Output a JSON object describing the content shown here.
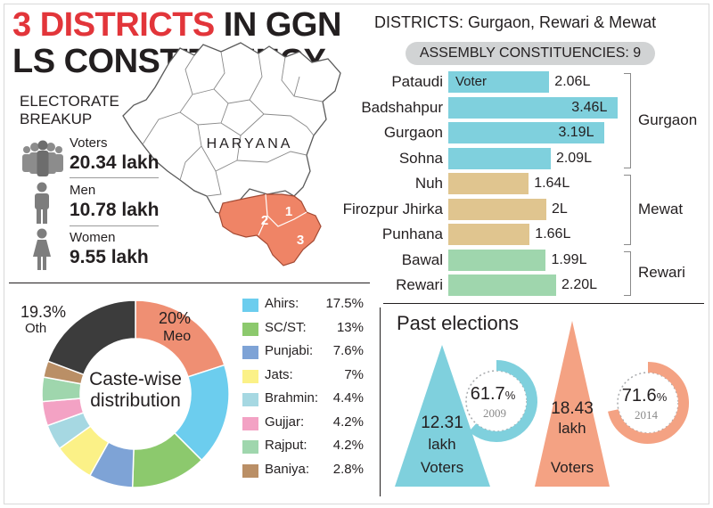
{
  "headline": {
    "part1": "3 DISTRICTS",
    "part2": " IN GGN",
    "line2": "LS CONSTITUENCY"
  },
  "electorate": {
    "title_line1": "ELECTORATE",
    "title_line2": "BREAKUP",
    "items": [
      {
        "label": "Voters",
        "value": "20.34 lakh",
        "icon": "people-group-icon"
      },
      {
        "label": "Men",
        "value": "10.78 lakh",
        "icon": "man-icon"
      },
      {
        "label": "Women",
        "value": "9.55 lakh",
        "icon": "woman-icon"
      }
    ]
  },
  "map": {
    "state_label": "HARYANA",
    "district_numbers": [
      "1",
      "2",
      "3"
    ]
  },
  "districts_header": "DISTRICTS: Gurgaon, Rewari & Mewat",
  "assembly_pill": "ASSEMBLY CONSTITUENCIES: 9",
  "colors": {
    "gurgaon": "#7fd0dd",
    "mewat": "#e0c58f",
    "rewari": "#9fd6ad",
    "accent_red": "#e2353a",
    "map_highlight": "#ef8466",
    "map_base": "#ffffff"
  },
  "chart_data": [
    {
      "type": "bar",
      "orientation": "horizontal",
      "inline_label": "Voter",
      "unit": "L",
      "categories": [
        "Pataudi",
        "Badshahpur",
        "Gurgaon",
        "Sohna",
        "Nuh",
        "Firozpur Jhirka",
        "Punhana",
        "Bawal",
        "Rewari"
      ],
      "values": [
        2.06,
        3.46,
        3.19,
        2.09,
        1.64,
        2.0,
        1.66,
        1.99,
        2.2
      ],
      "value_labels": [
        "2.06L",
        "3.46L",
        "3.19L",
        "2.09L",
        "1.64L",
        "2L",
        "1.66L",
        "1.99L",
        "2.20L"
      ],
      "groups": [
        {
          "name": "Gurgaon",
          "members": [
            "Pataudi",
            "Badshahpur",
            "Gurgaon",
            "Sohna"
          ]
        },
        {
          "name": "Mewat",
          "members": [
            "Nuh",
            "Firozpur Jhirka",
            "Punhana"
          ]
        },
        {
          "name": "Rewari",
          "members": [
            "Bawal",
            "Rewari"
          ]
        }
      ]
    },
    {
      "type": "pie",
      "donut": true,
      "center_label_line1": "Caste-wise",
      "center_label_line2": "distribution",
      "slices": [
        {
          "name": "Meo",
          "value": 20,
          "label": "20%",
          "color": "#ef8f73"
        },
        {
          "name": "Ahirs:",
          "value": 17.5,
          "label": "17.5%",
          "color": "#6ccdee"
        },
        {
          "name": "SC/ST:",
          "value": 13,
          "label": "13%",
          "color": "#8cc96d"
        },
        {
          "name": "Punjabi:",
          "value": 7.6,
          "label": "7.6%",
          "color": "#7ea3d6"
        },
        {
          "name": "Jats:",
          "value": 7,
          "label": "7%",
          "color": "#fbf187"
        },
        {
          "name": "Brahmin:",
          "value": 4.4,
          "label": "4.4%",
          "color": "#a6d8e2"
        },
        {
          "name": "Gujjar:",
          "value": 4.2,
          "label": "4.2%",
          "color": "#f3a2c4"
        },
        {
          "name": "Rajput:",
          "value": 4.2,
          "label": "4.2%",
          "color": "#9fd6ad"
        },
        {
          "name": "Baniya:",
          "value": 2.8,
          "label": "2.8%",
          "color": "#ba8f66"
        },
        {
          "name": "Oth",
          "value": 19.3,
          "label": "19.3%",
          "color": "#3c3c3c"
        }
      ]
    },
    {
      "type": "pie",
      "title": "Past elections",
      "items": [
        {
          "year": "2009",
          "turnout": 61.7,
          "turnout_num": "61.7",
          "turnout_pct": "%",
          "voters_value": "12.31",
          "voters_unit": "lakh",
          "voters_label": "Voters",
          "color": "#7fd0dd"
        },
        {
          "year": "2014",
          "turnout": 71.6,
          "turnout_num": "71.6",
          "turnout_pct": "%",
          "voters_value": "18.43",
          "voters_unit": "lakh",
          "voters_label": "Voters",
          "color": "#f4a283"
        }
      ]
    }
  ]
}
